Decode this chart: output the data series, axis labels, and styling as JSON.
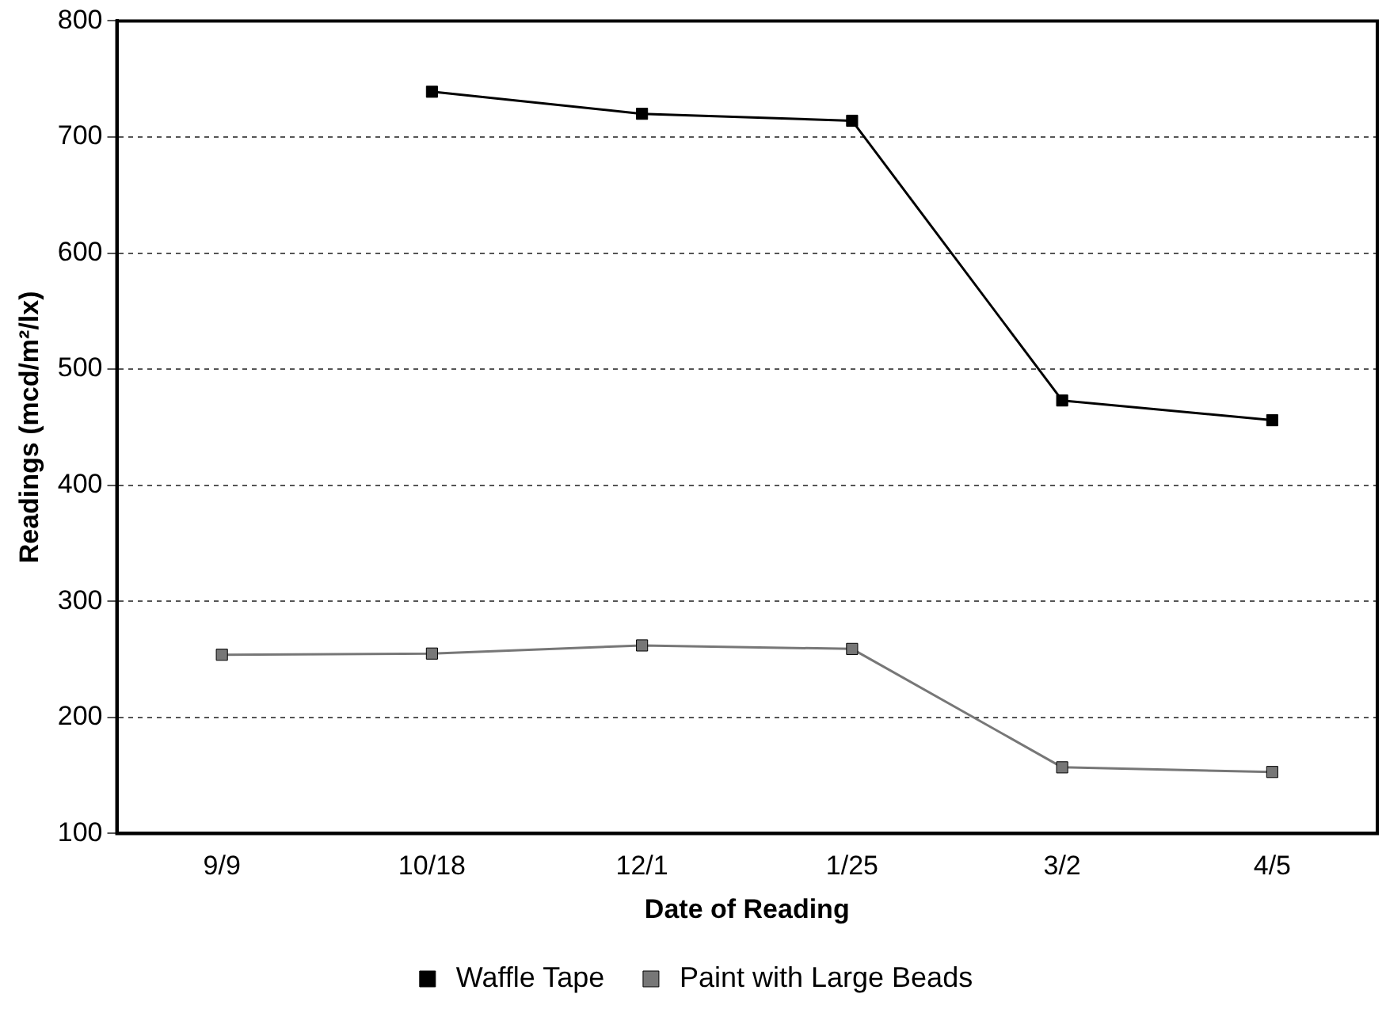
{
  "chart_data": {
    "type": "line",
    "xlabel": "Date of Reading",
    "ylabel": "Readings (mcd/m²/lx)",
    "categories": [
      "9/9",
      "10/18",
      "12/1",
      "1/25",
      "3/2",
      "4/5"
    ],
    "series": [
      {
        "name": "Waffle Tape",
        "color": "#000000",
        "values": [
          null,
          739,
          720,
          714,
          473,
          456
        ]
      },
      {
        "name": "Paint with Large Beads",
        "color": "#777777",
        "values": [
          254,
          255,
          262,
          259,
          157,
          153
        ]
      }
    ],
    "ylim": [
      100,
      800
    ],
    "yticks": [
      100,
      200,
      300,
      400,
      500,
      600,
      700,
      800
    ],
    "grid": "y",
    "legend": "bottom",
    "marker": "square",
    "line_style": "solid"
  }
}
